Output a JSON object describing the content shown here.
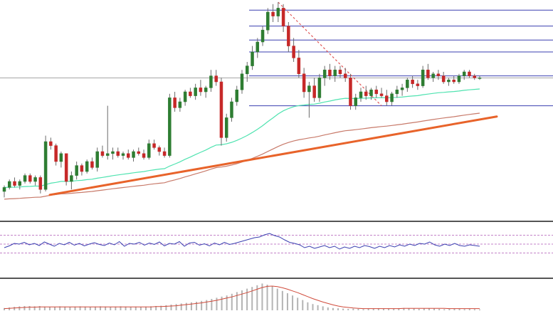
{
  "chart_data": [
    {
      "type": "candlestick",
      "title": "",
      "xlabel": "",
      "ylabel": "",
      "ylim": [
        0,
        100
      ],
      "grid": false,
      "legend": "none",
      "colors": {
        "bull": "#2e7d32",
        "bear": "#c62828",
        "trendline": "#e8632a",
        "ma_fast": "#4fe3b0",
        "ma_slow": "#c87a6a",
        "fib": "#3a3fb0",
        "retrace": "#e05555",
        "price_line": "#888888"
      },
      "candles": [
        {
          "o": 5,
          "h": 8,
          "l": 2,
          "c": 7
        },
        {
          "o": 7,
          "h": 11,
          "l": 6,
          "c": 10
        },
        {
          "o": 10,
          "h": 12,
          "l": 7,
          "c": 8
        },
        {
          "o": 8,
          "h": 11,
          "l": 6,
          "c": 10
        },
        {
          "o": 10,
          "h": 14,
          "l": 9,
          "c": 13
        },
        {
          "o": 13,
          "h": 14,
          "l": 9,
          "c": 10
        },
        {
          "o": 10,
          "h": 13,
          "l": 8,
          "c": 12
        },
        {
          "o": 12,
          "h": 13,
          "l": 4,
          "c": 6
        },
        {
          "o": 6,
          "h": 33,
          "l": 5,
          "c": 30
        },
        {
          "o": 30,
          "h": 32,
          "l": 26,
          "c": 28
        },
        {
          "o": 28,
          "h": 29,
          "l": 18,
          "c": 20
        },
        {
          "o": 20,
          "h": 25,
          "l": 17,
          "c": 24
        },
        {
          "o": 24,
          "h": 24,
          "l": 8,
          "c": 10
        },
        {
          "o": 10,
          "h": 15,
          "l": 6,
          "c": 13
        },
        {
          "o": 13,
          "h": 20,
          "l": 11,
          "c": 18
        },
        {
          "o": 18,
          "h": 19,
          "l": 13,
          "c": 15
        },
        {
          "o": 15,
          "h": 21,
          "l": 14,
          "c": 20
        },
        {
          "o": 20,
          "h": 22,
          "l": 16,
          "c": 17
        },
        {
          "o": 17,
          "h": 27,
          "l": 15,
          "c": 25
        },
        {
          "o": 25,
          "h": 28,
          "l": 22,
          "c": 23
        },
        {
          "o": 23,
          "h": 48,
          "l": 21,
          "c": 24
        },
        {
          "o": 24,
          "h": 27,
          "l": 21,
          "c": 25
        },
        {
          "o": 25,
          "h": 27,
          "l": 22,
          "c": 23
        },
        {
          "o": 23,
          "h": 25,
          "l": 21,
          "c": 24
        },
        {
          "o": 24,
          "h": 26,
          "l": 21,
          "c": 22
        },
        {
          "o": 22,
          "h": 26,
          "l": 20,
          "c": 25
        },
        {
          "o": 25,
          "h": 27,
          "l": 23,
          "c": 24
        },
        {
          "o": 24,
          "h": 26,
          "l": 21,
          "c": 22
        },
        {
          "o": 22,
          "h": 31,
          "l": 21,
          "c": 29
        },
        {
          "o": 29,
          "h": 31,
          "l": 26,
          "c": 27
        },
        {
          "o": 27,
          "h": 28,
          "l": 23,
          "c": 25
        },
        {
          "o": 25,
          "h": 27,
          "l": 22,
          "c": 23
        },
        {
          "o": 23,
          "h": 54,
          "l": 22,
          "c": 52
        },
        {
          "o": 52,
          "h": 55,
          "l": 45,
          "c": 47
        },
        {
          "o": 47,
          "h": 52,
          "l": 45,
          "c": 50
        },
        {
          "o": 50,
          "h": 56,
          "l": 48,
          "c": 55
        },
        {
          "o": 55,
          "h": 57,
          "l": 52,
          "c": 53
        },
        {
          "o": 53,
          "h": 59,
          "l": 51,
          "c": 57
        },
        {
          "o": 57,
          "h": 61,
          "l": 53,
          "c": 55
        },
        {
          "o": 55,
          "h": 58,
          "l": 52,
          "c": 57
        },
        {
          "o": 57,
          "h": 66,
          "l": 55,
          "c": 63
        },
        {
          "o": 63,
          "h": 66,
          "l": 58,
          "c": 60
        },
        {
          "o": 60,
          "h": 62,
          "l": 28,
          "c": 32
        },
        {
          "o": 32,
          "h": 44,
          "l": 30,
          "c": 42
        },
        {
          "o": 42,
          "h": 52,
          "l": 40,
          "c": 50
        },
        {
          "o": 50,
          "h": 58,
          "l": 48,
          "c": 56
        },
        {
          "o": 56,
          "h": 66,
          "l": 54,
          "c": 64
        },
        {
          "o": 64,
          "h": 70,
          "l": 60,
          "c": 68
        },
        {
          "o": 68,
          "h": 78,
          "l": 66,
          "c": 75
        },
        {
          "o": 75,
          "h": 82,
          "l": 72,
          "c": 80
        },
        {
          "o": 80,
          "h": 88,
          "l": 78,
          "c": 86
        },
        {
          "o": 86,
          "h": 97,
          "l": 84,
          "c": 95
        },
        {
          "o": 95,
          "h": 99,
          "l": 90,
          "c": 93
        },
        {
          "o": 93,
          "h": 100,
          "l": 90,
          "c": 97
        },
        {
          "o": 97,
          "h": 99,
          "l": 85,
          "c": 88
        },
        {
          "o": 88,
          "h": 90,
          "l": 75,
          "c": 78
        },
        {
          "o": 78,
          "h": 82,
          "l": 70,
          "c": 72
        },
        {
          "o": 72,
          "h": 76,
          "l": 62,
          "c": 64
        },
        {
          "o": 64,
          "h": 67,
          "l": 52,
          "c": 55
        },
        {
          "o": 55,
          "h": 60,
          "l": 42,
          "c": 58
        },
        {
          "o": 58,
          "h": 62,
          "l": 50,
          "c": 52
        },
        {
          "o": 52,
          "h": 64,
          "l": 50,
          "c": 62
        },
        {
          "o": 62,
          "h": 68,
          "l": 58,
          "c": 66
        },
        {
          "o": 66,
          "h": 69,
          "l": 61,
          "c": 63
        },
        {
          "o": 63,
          "h": 68,
          "l": 60,
          "c": 66
        },
        {
          "o": 66,
          "h": 68,
          "l": 62,
          "c": 64
        },
        {
          "o": 64,
          "h": 67,
          "l": 60,
          "c": 62
        },
        {
          "o": 62,
          "h": 64,
          "l": 46,
          "c": 48
        },
        {
          "o": 48,
          "h": 54,
          "l": 46,
          "c": 52
        },
        {
          "o": 52,
          "h": 57,
          "l": 50,
          "c": 55
        },
        {
          "o": 55,
          "h": 58,
          "l": 51,
          "c": 53
        },
        {
          "o": 53,
          "h": 57,
          "l": 51,
          "c": 56
        },
        {
          "o": 56,
          "h": 58,
          "l": 52,
          "c": 54
        },
        {
          "o": 54,
          "h": 57,
          "l": 52,
          "c": 53
        },
        {
          "o": 53,
          "h": 56,
          "l": 48,
          "c": 50
        },
        {
          "o": 50,
          "h": 55,
          "l": 48,
          "c": 54
        },
        {
          "o": 54,
          "h": 58,
          "l": 52,
          "c": 56
        },
        {
          "o": 56,
          "h": 59,
          "l": 53,
          "c": 57
        },
        {
          "o": 57,
          "h": 62,
          "l": 55,
          "c": 61
        },
        {
          "o": 61,
          "h": 63,
          "l": 57,
          "c": 59
        },
        {
          "o": 59,
          "h": 61,
          "l": 56,
          "c": 58
        },
        {
          "o": 58,
          "h": 68,
          "l": 57,
          "c": 66
        },
        {
          "o": 66,
          "h": 69,
          "l": 61,
          "c": 62
        },
        {
          "o": 62,
          "h": 65,
          "l": 60,
          "c": 64
        },
        {
          "o": 64,
          "h": 66,
          "l": 61,
          "c": 63
        },
        {
          "o": 63,
          "h": 65,
          "l": 59,
          "c": 60
        },
        {
          "o": 60,
          "h": 62,
          "l": 58,
          "c": 61
        },
        {
          "o": 61,
          "h": 63,
          "l": 59,
          "c": 60
        },
        {
          "o": 60,
          "h": 64,
          "l": 59,
          "c": 63
        },
        {
          "o": 63,
          "h": 66,
          "l": 61,
          "c": 65
        },
        {
          "o": 65,
          "h": 66,
          "l": 62,
          "c": 63
        },
        {
          "o": 63,
          "h": 64,
          "l": 61,
          "c": 62
        },
        {
          "o": 62,
          "h": 63,
          "l": 61,
          "c": 62
        }
      ],
      "fib_levels": [
        96,
        88,
        81,
        75,
        63,
        48
      ],
      "trendline": {
        "from": [
          17,
          7
        ],
        "to": [
          116,
          52
        ]
      }
    },
    {
      "type": "line",
      "title": "",
      "ylim": [
        0,
        100
      ],
      "guides": [
        75,
        50,
        25
      ],
      "values": [
        40,
        45,
        52,
        50,
        55,
        48,
        52,
        46,
        56,
        50,
        44,
        52,
        48,
        55,
        47,
        52,
        45,
        50,
        54,
        49,
        46,
        53,
        48,
        57,
        44,
        52,
        50,
        55,
        47,
        53,
        49,
        56,
        45,
        52,
        50,
        57,
        44,
        53,
        55,
        47,
        51,
        45,
        53,
        48,
        55,
        49,
        52,
        56,
        60,
        64,
        68,
        70,
        76,
        80,
        74,
        70,
        62,
        55,
        52,
        48,
        40,
        44,
        38,
        42,
        46,
        40,
        44,
        36,
        42,
        38,
        44,
        40,
        46,
        43,
        38,
        44,
        40,
        46,
        42,
        48,
        44,
        50,
        46,
        52,
        50,
        56,
        48,
        44,
        50,
        46,
        52,
        46,
        44,
        48,
        46,
        44
      ]
    },
    {
      "type": "bar",
      "title": "",
      "ylim": [
        0,
        100
      ],
      "values": [
        8,
        10,
        12,
        14,
        15,
        15,
        14,
        15,
        13,
        12,
        12,
        14,
        13,
        12,
        13,
        14,
        13,
        12,
        13,
        14,
        13,
        12,
        13,
        14,
        13,
        12,
        13,
        12,
        13,
        14,
        15,
        16,
        18,
        20,
        22,
        24,
        26,
        28,
        30,
        33,
        36,
        40,
        44,
        48,
        52,
        58,
        64,
        70,
        76,
        82,
        88,
        94,
        90,
        84,
        76,
        68,
        60,
        52,
        44,
        36,
        28,
        22,
        18,
        14,
        10,
        8,
        7,
        6,
        5,
        6,
        5,
        4,
        5,
        6,
        7,
        6,
        5,
        6,
        7,
        8,
        7,
        6,
        5,
        6,
        7,
        6,
        5,
        4,
        5,
        6,
        5,
        4,
        5,
        4,
        3
      ],
      "signal": [
        6,
        7,
        8,
        9,
        10,
        11,
        11,
        12,
        12,
        12,
        12,
        12,
        12,
        12,
        12,
        12,
        12,
        12,
        12,
        12,
        12,
        12,
        12,
        12,
        12,
        12,
        12,
        12,
        12,
        12,
        13,
        13,
        14,
        15,
        16,
        18,
        20,
        22,
        24,
        26,
        29,
        32,
        35,
        39,
        43,
        47,
        52,
        57,
        62,
        68,
        74,
        80,
        84,
        85,
        83,
        79,
        74,
        68,
        62,
        55,
        48,
        41,
        35,
        29,
        24,
        19,
        15,
        12,
        10,
        8,
        7,
        6,
        6,
        6,
        6,
        6,
        6,
        6,
        6,
        7,
        7,
        7,
        7,
        7,
        7,
        7,
        7,
        7,
        6,
        6,
        6,
        6,
        6,
        6,
        6
      ]
    }
  ]
}
